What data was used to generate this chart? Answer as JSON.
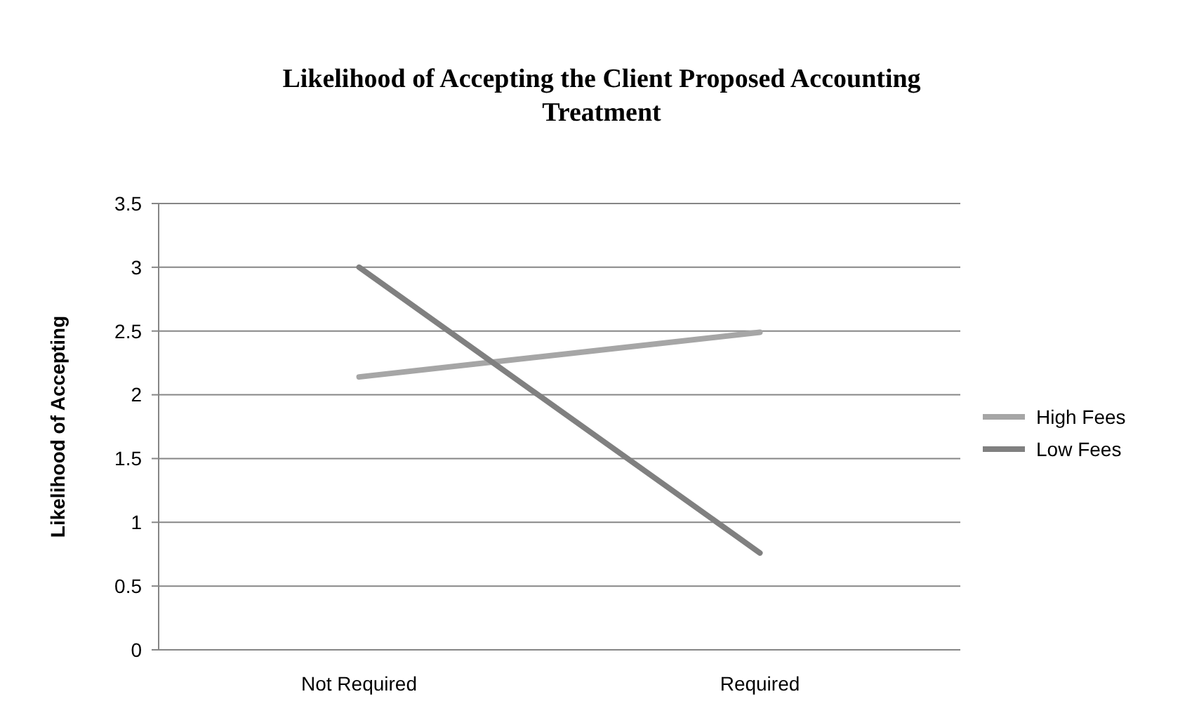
{
  "chart_data": {
    "type": "line",
    "title": "Likelihood of Accepting the Client Proposed Accounting Treatment",
    "ylabel": "Likelihood of Accepting",
    "categories": [
      "Not Required",
      "Required"
    ],
    "series": [
      {
        "name": "High Fees",
        "color": "#a6a6a6",
        "values": [
          2.14,
          2.49
        ]
      },
      {
        "name": "Low Fees",
        "color": "#808080",
        "values": [
          3.0,
          0.76
        ]
      }
    ],
    "ylim": [
      0,
      3.5
    ],
    "yticks": [
      0,
      0.5,
      1,
      1.5,
      2,
      2.5,
      3,
      3.5
    ],
    "grid": "y",
    "legend": "right",
    "marker": "none"
  }
}
